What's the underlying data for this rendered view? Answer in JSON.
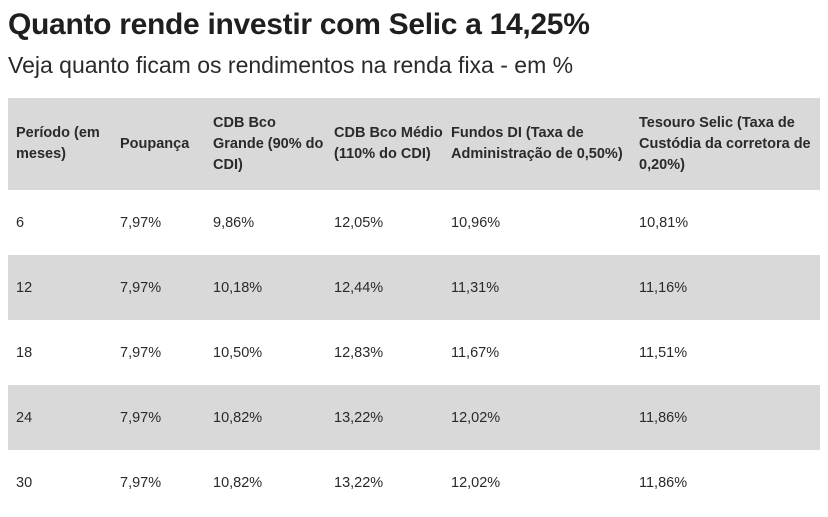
{
  "title": "Quanto rende investir com Selic a 14,25%",
  "subtitle": "Veja quanto ficam os rendimentos na renda fixa - em %",
  "table": {
    "headers": [
      "Período (em meses)",
      "Poupança",
      "CDB Bco Grande (90% do CDI)",
      "CDB Bco Médio (110% do CDI)",
      "Fundos DI (Taxa de Administração de 0,50%)",
      "Tesouro Selic (Taxa de Custódia da corretora de 0,20%)"
    ],
    "rows": [
      [
        "6",
        "7,97%",
        "9,86%",
        "12,05%",
        "10,96%",
        "10,81%"
      ],
      [
        "12",
        "7,97%",
        "10,18%",
        "12,44%",
        "11,31%",
        "11,16%"
      ],
      [
        "18",
        "7,97%",
        "10,50%",
        "12,83%",
        "11,67%",
        "11,51%"
      ],
      [
        "24",
        "7,97%",
        "10,82%",
        "13,22%",
        "12,02%",
        "11,86%"
      ],
      [
        "30",
        "7,97%",
        "10,82%",
        "13,22%",
        "12,02%",
        "11,86%"
      ]
    ]
  },
  "colors": {
    "stripe": "#d9d9d9",
    "text": "#222222"
  }
}
